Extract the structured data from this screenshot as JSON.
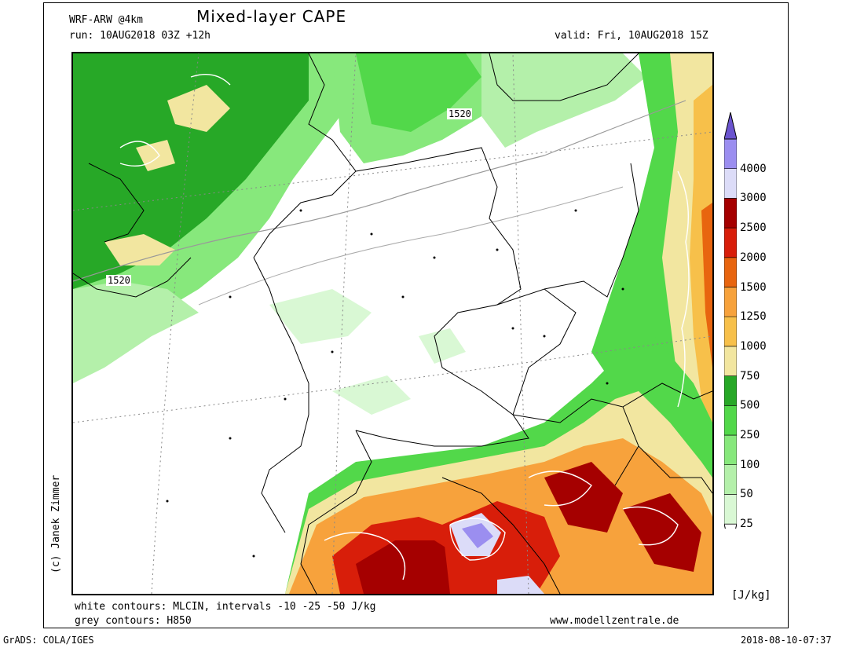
{
  "header": {
    "model": "WRF-ARW @4km",
    "title": "Mixed-layer CAPE",
    "run": "run: 10AUG2018 03Z +12h",
    "valid": "valid: Fri, 10AUG2018 15Z"
  },
  "map": {
    "contour_label_1": "1520",
    "contour_label_2": "1520"
  },
  "credit": "(c) Janek Zimmer",
  "footer": {
    "white_contours": "white contours: MLCIN, intervals -10 -25 -50 J/kg",
    "grey_contours": "grey contours: H850",
    "website": "www.modellzentrale.de",
    "grads": "GrADS: COLA/IGES",
    "timestamp": "2018-08-10-07:37"
  },
  "colorbar": {
    "unit": "[J/kg]",
    "levels": [
      {
        "label": "25",
        "color": "#d9f8d4"
      },
      {
        "label": "50",
        "color": "#b4f0aa"
      },
      {
        "label": "100",
        "color": "#87e87c"
      },
      {
        "label": "250",
        "color": "#52d84a"
      },
      {
        "label": "500",
        "color": "#27a827"
      },
      {
        "label": "750",
        "color": "#f2e6a0"
      },
      {
        "label": "1000",
        "color": "#f7c04a"
      },
      {
        "label": "1250",
        "color": "#f7a23c"
      },
      {
        "label": "1500",
        "color": "#e8650f"
      },
      {
        "label": "2000",
        "color": "#d81e0a"
      },
      {
        "label": "2500",
        "color": "#a50000"
      },
      {
        "label": "3000",
        "color": "#dcdcf8"
      },
      {
        "label": "4000",
        "color": "#9b8ef0"
      },
      {
        "label": "",
        "color": "#6b54cf"
      }
    ]
  }
}
